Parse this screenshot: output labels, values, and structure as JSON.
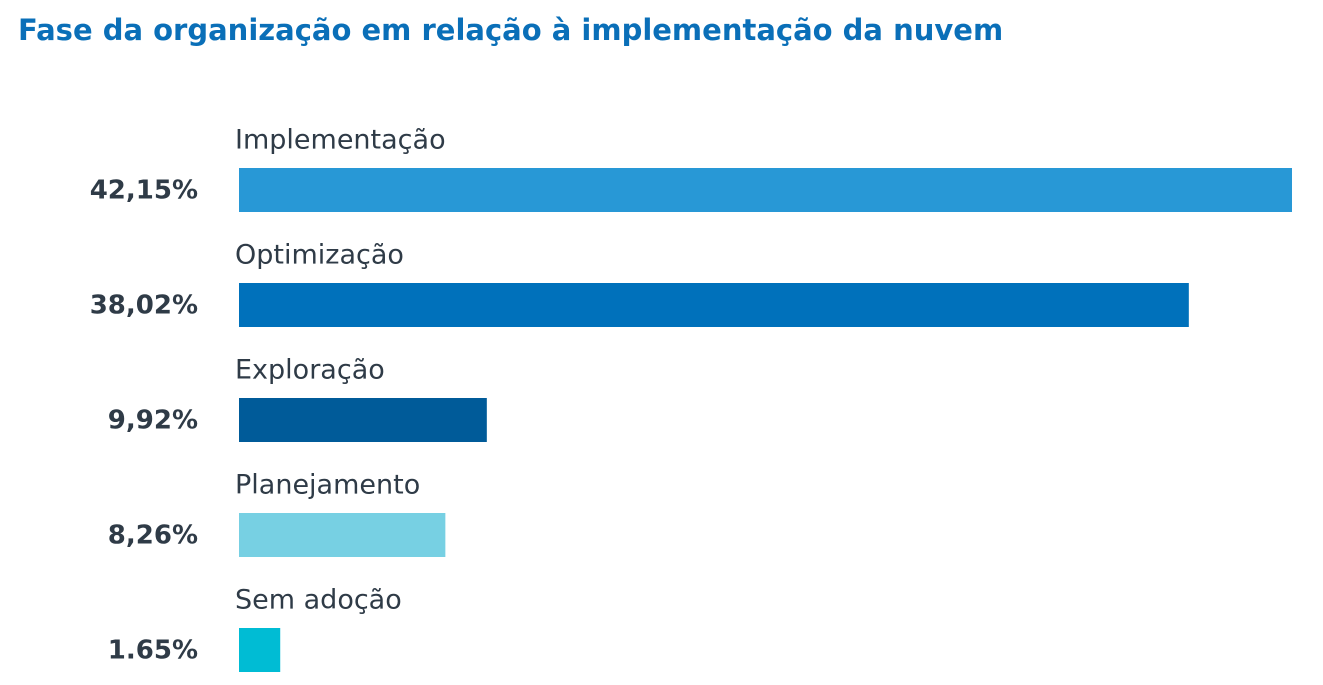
{
  "chart_data": {
    "type": "bar",
    "orientation": "horizontal",
    "title": "Fase da organização em relação à implementação da nuvem",
    "categories": [
      "Implementação",
      "Optimização",
      "Exploração",
      "Planejamento",
      "Sem adoção"
    ],
    "values": [
      42.15,
      38.02,
      9.92,
      8.26,
      1.65
    ],
    "value_labels": [
      "42,15%",
      "38,02%",
      "9,92%",
      "8,26%",
      "1.65%"
    ],
    "colors": [
      "#2898d6",
      "#0071bb",
      "#005b99",
      "#77d0e3",
      "#00bcd4"
    ]
  }
}
